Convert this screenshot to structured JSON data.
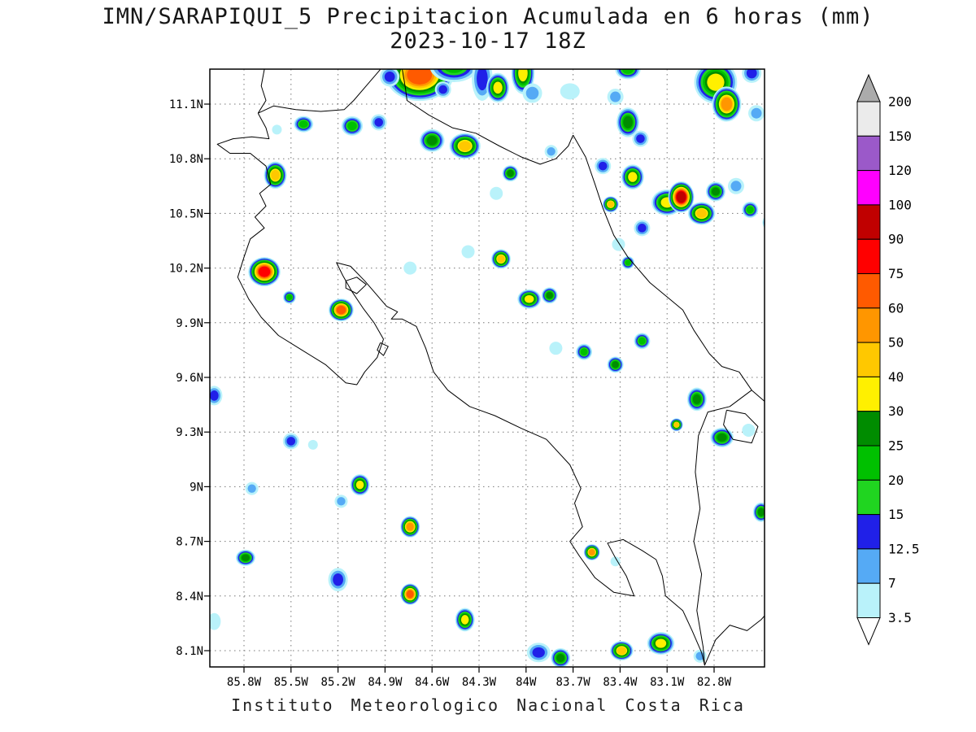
{
  "header": {
    "title_line1": "IMN/SARAPIQUI_5 Precipitacion Acumulada en 6 horas (mm)",
    "title_line2": "2023-10-17 18Z"
  },
  "footer": {
    "caption": "Instituto Meteorologico Nacional Costa Rica"
  },
  "axes": {
    "lat_tick_labels": [
      "11.1N",
      "10.8N",
      "10.5N",
      "10.2N",
      "9.9N",
      "9.6N",
      "9.3N",
      "9N",
      "8.7N",
      "8.4N",
      "8.1N"
    ],
    "lat_tick_values": [
      11.1,
      10.8,
      10.5,
      10.2,
      9.9,
      9.6,
      9.3,
      9.0,
      8.7,
      8.4,
      8.1
    ],
    "lon_tick_labels": [
      "85.8W",
      "85.5W",
      "85.2W",
      "84.9W",
      "84.6W",
      "84.3W",
      "84W",
      "83.7W",
      "83.4W",
      "83.1W",
      "82.8W"
    ],
    "lon_tick_values": [
      -85.8,
      -85.5,
      -85.2,
      -84.9,
      -84.6,
      -84.3,
      -84.0,
      -83.7,
      -83.4,
      -83.1,
      -82.8
    ]
  },
  "colorbar": {
    "labels_top_to_bottom": [
      "200",
      "150",
      "120",
      "100",
      "90",
      "75",
      "60",
      "50",
      "40",
      "30",
      "25",
      "20",
      "15",
      "12.5",
      "7",
      "3.5"
    ],
    "over_color": "#ababab",
    "under_color": "#ffffff"
  },
  "chart_data": {
    "type": "heatmap",
    "title": "IMN/SARAPIQUI_5 Precipitacion Acumulada en 6 horas (mm)",
    "subtitle": "2023-10-17 18Z",
    "units": "mm",
    "legend_position": "right",
    "grid": "dotted",
    "lat_range": [
      8.0,
      11.3
    ],
    "lon_range": [
      -86.02,
      -82.48
    ],
    "levels_mm": [
      3.5,
      7,
      12.5,
      15,
      20,
      25,
      30,
      40,
      50,
      60,
      75,
      90,
      100,
      120,
      150,
      200
    ],
    "band_colors_low_to_high": [
      "#b9f2fa",
      "#55aaf5",
      "#2020e8",
      "#20d520",
      "#00c000",
      "#008c00",
      "#fff000",
      "#ffc800",
      "#ff9600",
      "#ff5a00",
      "#ff0000",
      "#c00000",
      "#ff00ff",
      "#9b59c9",
      "#ebebeb"
    ],
    "precip_cells": {
      "columns": [
        "lon_deg_east",
        "lat_deg_north",
        "peak_mm",
        "radius_deg",
        "stretch_x",
        "stretch_y"
      ],
      "rows": [
        [
          -84.68,
          11.26,
          60,
          0.16,
          1.3,
          1.0
        ],
        [
          -84.46,
          11.31,
          20,
          0.1,
          1.5,
          1.0
        ],
        [
          -84.28,
          11.24,
          12.5,
          0.08,
          0.8,
          1.7
        ],
        [
          -84.18,
          11.19,
          30,
          0.07,
          1.0,
          1.3
        ],
        [
          -84.02,
          11.27,
          30,
          0.08,
          0.9,
          1.6
        ],
        [
          -83.96,
          11.16,
          7,
          0.06,
          1.0,
          1.0
        ],
        [
          -83.72,
          11.17,
          3.5,
          0.05,
          1.2,
          1.0
        ],
        [
          -83.43,
          11.14,
          7,
          0.05,
          1.0,
          1.0
        ],
        [
          -83.35,
          11.0,
          25,
          0.07,
          1.0,
          1.3
        ],
        [
          -83.27,
          10.91,
          12.5,
          0.05,
          1.0,
          1.0
        ],
        [
          -82.79,
          11.22,
          30,
          0.12,
          1.1,
          1.1
        ],
        [
          -82.72,
          11.1,
          50,
          0.09,
          1.0,
          1.2
        ],
        [
          -82.56,
          11.27,
          12.5,
          0.06,
          1.0,
          1.0
        ],
        [
          -82.53,
          11.05,
          7,
          0.05,
          1.0,
          1.0
        ],
        [
          -85.42,
          10.99,
          20,
          0.05,
          1.2,
          1.0
        ],
        [
          -85.59,
          10.96,
          3.5,
          0.03,
          1.0,
          1.0
        ],
        [
          -85.11,
          10.98,
          20,
          0.06,
          1.1,
          1.0
        ],
        [
          -84.94,
          11.0,
          12.5,
          0.05,
          1.0,
          1.0
        ],
        [
          -84.6,
          10.9,
          25,
          0.07,
          1.1,
          1.0
        ],
        [
          -84.39,
          10.87,
          40,
          0.08,
          1.2,
          1.0
        ],
        [
          -85.6,
          10.71,
          40,
          0.07,
          1.0,
          1.2
        ],
        [
          -84.1,
          10.72,
          25,
          0.05,
          1.0,
          1.0
        ],
        [
          -83.84,
          10.84,
          7,
          0.04,
          1.0,
          1.0
        ],
        [
          -84.19,
          10.61,
          3.5,
          0.04,
          1.0,
          1.0
        ],
        [
          -83.51,
          10.76,
          12.5,
          0.05,
          1.0,
          1.0
        ],
        [
          -83.32,
          10.7,
          30,
          0.07,
          1.0,
          1.1
        ],
        [
          -83.1,
          10.56,
          30,
          0.08,
          1.2,
          1.0
        ],
        [
          -83.01,
          10.59,
          90,
          0.08,
          1.0,
          1.2
        ],
        [
          -82.88,
          10.5,
          40,
          0.07,
          1.2,
          1.0
        ],
        [
          -82.79,
          10.62,
          25,
          0.06,
          1.0,
          1.0
        ],
        [
          -82.66,
          10.65,
          7,
          0.05,
          1.0,
          1.0
        ],
        [
          -82.57,
          10.52,
          20,
          0.05,
          1.0,
          1.0
        ],
        [
          -83.46,
          10.55,
          40,
          0.05,
          1.0,
          1.0
        ],
        [
          -83.26,
          10.42,
          12.5,
          0.05,
          1.0,
          1.0
        ],
        [
          -83.41,
          10.33,
          3.5,
          0.04,
          1.0,
          1.0
        ],
        [
          -85.67,
          10.18,
          75,
          0.09,
          1.1,
          1.0
        ],
        [
          -85.51,
          10.04,
          20,
          0.04,
          1.0,
          1.0
        ],
        [
          -85.18,
          9.97,
          60,
          0.07,
          1.1,
          1.0
        ],
        [
          -84.74,
          10.2,
          3.5,
          0.04,
          1.0,
          1.0
        ],
        [
          -84.37,
          10.29,
          3.5,
          0.04,
          1.0,
          1.0
        ],
        [
          -84.16,
          10.25,
          40,
          0.06,
          1.0,
          1.0
        ],
        [
          -83.98,
          10.03,
          30,
          0.06,
          1.2,
          1.0
        ],
        [
          -83.85,
          10.05,
          25,
          0.05,
          1.0,
          1.0
        ],
        [
          -83.35,
          10.23,
          20,
          0.04,
          1.0,
          1.0
        ],
        [
          -83.81,
          9.76,
          3.5,
          0.04,
          1.0,
          1.0
        ],
        [
          -83.63,
          9.74,
          20,
          0.05,
          1.0,
          1.0
        ],
        [
          -83.43,
          9.67,
          25,
          0.05,
          1.0,
          1.0
        ],
        [
          -83.26,
          9.8,
          20,
          0.05,
          1.0,
          1.0
        ],
        [
          -85.99,
          9.5,
          12.5,
          0.05,
          1.0,
          1.2
        ],
        [
          -82.91,
          9.48,
          25,
          0.06,
          1.0,
          1.2
        ],
        [
          -83.04,
          9.34,
          40,
          0.04,
          1.0,
          1.0
        ],
        [
          -82.75,
          9.27,
          25,
          0.06,
          1.2,
          1.0
        ],
        [
          -82.58,
          9.31,
          3.5,
          0.04,
          1.0,
          1.0
        ],
        [
          -85.5,
          9.25,
          12.5,
          0.05,
          1.0,
          1.0
        ],
        [
          -85.36,
          9.23,
          3.5,
          0.03,
          1.0,
          1.0
        ],
        [
          -85.06,
          9.01,
          30,
          0.06,
          1.0,
          1.1
        ],
        [
          -85.18,
          8.92,
          7,
          0.04,
          1.0,
          1.0
        ],
        [
          -85.75,
          8.99,
          7,
          0.04,
          1.0,
          1.0
        ],
        [
          -84.74,
          8.78,
          50,
          0.06,
          1.0,
          1.1
        ],
        [
          -85.79,
          8.61,
          25,
          0.05,
          1.2,
          1.0
        ],
        [
          -85.2,
          8.49,
          12.5,
          0.06,
          1.0,
          1.2
        ],
        [
          -84.74,
          8.41,
          60,
          0.06,
          1.0,
          1.1
        ],
        [
          -84.39,
          8.27,
          30,
          0.06,
          1.0,
          1.2
        ],
        [
          -85.99,
          8.26,
          3.5,
          0.04,
          1.0,
          1.3
        ],
        [
          -83.58,
          8.64,
          50,
          0.05,
          1.0,
          1.0
        ],
        [
          -83.43,
          8.59,
          3.5,
          0.03,
          1.0,
          1.0
        ],
        [
          -83.92,
          8.09,
          12.5,
          0.06,
          1.2,
          1.0
        ],
        [
          -83.78,
          8.06,
          25,
          0.06,
          1.0,
          1.0
        ],
        [
          -83.39,
          8.1,
          40,
          0.06,
          1.2,
          1.0
        ],
        [
          -83.14,
          8.14,
          30,
          0.07,
          1.2,
          1.0
        ],
        [
          -82.89,
          8.07,
          7,
          0.04,
          1.0,
          1.0
        ],
        [
          -82.5,
          8.86,
          25,
          0.05,
          1.0,
          1.2
        ],
        [
          -84.87,
          11.25,
          12.5,
          0.06,
          1.0,
          1.0
        ],
        [
          -84.53,
          11.18,
          12.5,
          0.05,
          1.0,
          1.0
        ],
        [
          -83.35,
          11.29,
          20,
          0.06,
          1.3,
          1.0
        ],
        [
          -82.44,
          10.45,
          20,
          0.05,
          1.0,
          1.0
        ]
      ]
    },
    "coastlines_lonlat": [
      [
        [
          -85.67,
          11.29
        ],
        [
          -85.69,
          11.2
        ],
        [
          -85.66,
          11.12
        ],
        [
          -85.71,
          11.05
        ]
      ],
      [
        [
          -85.71,
          11.05
        ],
        [
          -85.61,
          11.09
        ],
        [
          -85.47,
          11.07
        ],
        [
          -85.31,
          11.06
        ],
        [
          -85.16,
          11.07
        ],
        [
          -85.1,
          11.12
        ],
        [
          -85.02,
          11.2
        ],
        [
          -84.93,
          11.29
        ]
      ],
      [
        [
          -84.79,
          11.29
        ],
        [
          -84.77,
          11.19
        ],
        [
          -84.76,
          11.12
        ],
        [
          -84.62,
          11.04
        ],
        [
          -84.47,
          10.97
        ],
        [
          -84.32,
          10.94
        ],
        [
          -84.17,
          10.87
        ],
        [
          -84.03,
          10.81
        ],
        [
          -83.91,
          10.77
        ],
        [
          -83.81,
          10.8
        ],
        [
          -83.73,
          10.87
        ],
        [
          -83.7,
          10.93
        ]
      ],
      [
        [
          -83.7,
          10.93
        ],
        [
          -83.62,
          10.81
        ],
        [
          -83.56,
          10.66
        ],
        [
          -83.51,
          10.53
        ],
        [
          -83.44,
          10.38
        ],
        [
          -83.35,
          10.26
        ],
        [
          -83.21,
          10.12
        ],
        [
          -83.07,
          10.02
        ],
        [
          -83.0,
          9.97
        ],
        [
          -82.93,
          9.86
        ],
        [
          -82.83,
          9.73
        ],
        [
          -82.75,
          9.66
        ],
        [
          -82.64,
          9.63
        ],
        [
          -82.56,
          9.53
        ],
        [
          -82.48,
          9.47
        ]
      ],
      [
        [
          -82.56,
          9.53
        ],
        [
          -82.7,
          9.44
        ],
        [
          -82.84,
          9.41
        ],
        [
          -82.9,
          9.28
        ],
        [
          -82.92,
          9.08
        ],
        [
          -82.89,
          8.88
        ],
        [
          -82.93,
          8.7
        ],
        [
          -82.88,
          8.52
        ],
        [
          -82.91,
          8.32
        ],
        [
          -82.87,
          8.12
        ],
        [
          -82.86,
          8.02
        ]
      ],
      [
        [
          -85.71,
          11.05
        ],
        [
          -85.66,
          10.97
        ],
        [
          -85.64,
          10.91
        ],
        [
          -85.75,
          10.92
        ],
        [
          -85.87,
          10.91
        ],
        [
          -85.97,
          10.88
        ],
        [
          -85.89,
          10.83
        ],
        [
          -85.76,
          10.83
        ],
        [
          -85.66,
          10.76
        ],
        [
          -85.63,
          10.66
        ],
        [
          -85.7,
          10.61
        ],
        [
          -85.66,
          10.54
        ],
        [
          -85.73,
          10.48
        ],
        [
          -85.67,
          10.42
        ],
        [
          -85.76,
          10.36
        ],
        [
          -85.8,
          10.26
        ],
        [
          -85.84,
          10.15
        ],
        [
          -85.77,
          10.03
        ],
        [
          -85.69,
          9.93
        ],
        [
          -85.58,
          9.83
        ],
        [
          -85.43,
          9.75
        ],
        [
          -85.28,
          9.67
        ],
        [
          -85.15,
          9.57
        ],
        [
          -85.08,
          9.56
        ],
        [
          -85.03,
          9.63
        ],
        [
          -84.95,
          9.71
        ],
        [
          -84.91,
          9.81
        ],
        [
          -84.97,
          9.9
        ],
        [
          -85.04,
          9.98
        ],
        [
          -85.11,
          10.07
        ],
        [
          -85.17,
          10.16
        ],
        [
          -85.21,
          10.23
        ],
        [
          -85.12,
          10.21
        ],
        [
          -85.03,
          10.13
        ],
        [
          -84.95,
          10.05
        ],
        [
          -84.89,
          9.99
        ],
        [
          -84.82,
          9.96
        ],
        [
          -84.86,
          9.92
        ],
        [
          -84.79,
          9.92
        ],
        [
          -84.7,
          9.88
        ],
        [
          -84.64,
          9.76
        ],
        [
          -84.59,
          9.63
        ],
        [
          -84.5,
          9.53
        ],
        [
          -84.36,
          9.44
        ],
        [
          -84.2,
          9.39
        ],
        [
          -84.03,
          9.32
        ],
        [
          -83.87,
          9.26
        ],
        [
          -83.72,
          9.12
        ],
        [
          -83.65,
          8.99
        ],
        [
          -83.69,
          8.91
        ],
        [
          -83.64,
          8.78
        ],
        [
          -83.72,
          8.7
        ],
        [
          -83.66,
          8.62
        ],
        [
          -83.56,
          8.5
        ],
        [
          -83.44,
          8.42
        ],
        [
          -83.31,
          8.4
        ],
        [
          -83.36,
          8.51
        ],
        [
          -83.43,
          8.61
        ],
        [
          -83.48,
          8.69
        ],
        [
          -83.38,
          8.71
        ],
        [
          -83.26,
          8.65
        ],
        [
          -83.17,
          8.6
        ],
        [
          -83.13,
          8.51
        ],
        [
          -83.11,
          8.4
        ],
        [
          -83.0,
          8.32
        ],
        [
          -82.94,
          8.21
        ],
        [
          -82.88,
          8.09
        ],
        [
          -82.86,
          8.02
        ],
        [
          -82.79,
          8.16
        ],
        [
          -82.7,
          8.24
        ],
        [
          -82.59,
          8.21
        ],
        [
          -82.5,
          8.27
        ],
        [
          -82.48,
          8.29
        ]
      ],
      [
        [
          -85.15,
          10.13
        ],
        [
          -85.08,
          10.15
        ],
        [
          -85.02,
          10.11
        ],
        [
          -85.08,
          10.06
        ],
        [
          -85.15,
          10.09
        ],
        [
          -85.15,
          10.13
        ]
      ],
      [
        [
          -84.93,
          9.79
        ],
        [
          -84.88,
          9.77
        ],
        [
          -84.91,
          9.72
        ],
        [
          -84.95,
          9.75
        ],
        [
          -84.93,
          9.79
        ]
      ],
      [
        [
          -82.72,
          9.42
        ],
        [
          -82.6,
          9.4
        ],
        [
          -82.52,
          9.33
        ],
        [
          -82.56,
          9.24
        ],
        [
          -82.68,
          9.26
        ],
        [
          -82.74,
          9.34
        ],
        [
          -82.72,
          9.42
        ]
      ]
    ]
  }
}
